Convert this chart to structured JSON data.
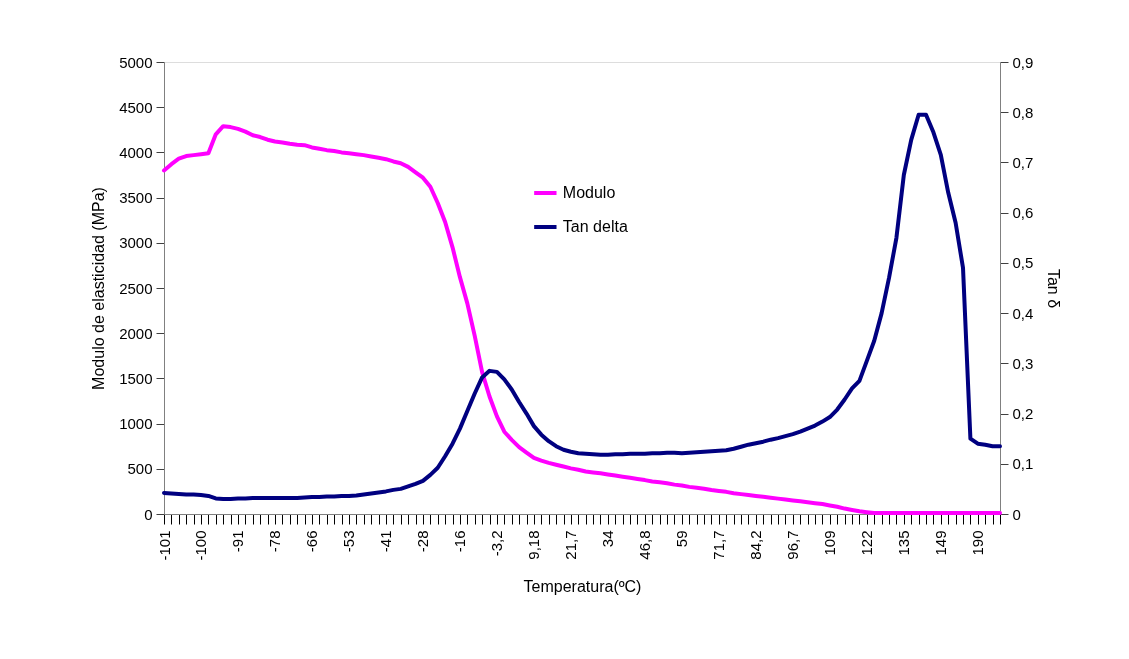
{
  "chart_data": {
    "type": "line",
    "xlabel": "Temperatura(ºC)",
    "ylabel": "Modulo de elasticidad (MPa)",
    "y2label": "Tan δ",
    "categories": [
      "-101",
      null,
      null,
      null,
      null,
      "-100",
      null,
      null,
      null,
      null,
      "-91",
      null,
      null,
      null,
      null,
      "-78",
      null,
      null,
      null,
      null,
      "-66",
      null,
      null,
      null,
      null,
      "-53",
      null,
      null,
      null,
      null,
      "-41",
      null,
      null,
      null,
      null,
      "-28",
      null,
      null,
      null,
      null,
      "-16",
      null,
      null,
      null,
      null,
      "-3,2",
      null,
      null,
      null,
      null,
      "9,18",
      null,
      null,
      null,
      null,
      "21,7",
      null,
      null,
      null,
      null,
      "34",
      null,
      null,
      null,
      null,
      "46,8",
      null,
      null,
      null,
      null,
      "59",
      null,
      null,
      null,
      null,
      "71,7",
      null,
      null,
      null,
      null,
      "84,2",
      null,
      null,
      null,
      null,
      "96,7",
      null,
      null,
      null,
      null,
      "109",
      null,
      null,
      null,
      null,
      "122",
      null,
      null,
      null,
      null,
      "135",
      null,
      null,
      null,
      null,
      "149",
      null,
      null,
      null,
      null,
      "190",
      null,
      null,
      null
    ],
    "series": [
      {
        "name": "Modulo",
        "color": "#ff00ff",
        "values": [
          3800,
          3870,
          3930,
          3960,
          3970,
          3980,
          3990,
          4200,
          4290,
          4280,
          4260,
          4230,
          4190,
          4170,
          4140,
          4120,
          4110,
          4095,
          4085,
          4080,
          4055,
          4040,
          4025,
          4015,
          4000,
          3990,
          3980,
          3970,
          3955,
          3940,
          3925,
          3900,
          3880,
          3840,
          3780,
          3720,
          3620,
          3440,
          3230,
          2950,
          2620,
          2330,
          1970,
          1570,
          1300,
          1080,
          910,
          820,
          740,
          680,
          620,
          590,
          565,
          545,
          525,
          505,
          490,
          470,
          460,
          450,
          438,
          425,
          413,
          400,
          388,
          375,
          360,
          350,
          340,
          325,
          315,
          300,
          290,
          280,
          265,
          255,
          245,
          230,
          220,
          210,
          200,
          190,
          180,
          170,
          160,
          150,
          140,
          130,
          120,
          110,
          95,
          80,
          60,
          45,
          30,
          20,
          10,
          10,
          10,
          10,
          10,
          10,
          10,
          10,
          10,
          10,
          10,
          10,
          10,
          10,
          10,
          10,
          10,
          10
        ]
      },
      {
        "name": "Tan delta",
        "color": "#000080",
        "axis": "y2",
        "values": [
          0.042,
          0.041,
          0.04,
          0.039,
          0.039,
          0.038,
          0.036,
          0.031,
          0.03,
          0.03,
          0.031,
          0.031,
          0.032,
          0.032,
          0.032,
          0.032,
          0.032,
          0.032,
          0.032,
          0.033,
          0.034,
          0.034,
          0.035,
          0.035,
          0.036,
          0.036,
          0.037,
          0.039,
          0.041,
          0.043,
          0.045,
          0.048,
          0.05,
          0.055,
          0.06,
          0.066,
          0.078,
          0.092,
          0.115,
          0.14,
          0.17,
          0.205,
          0.24,
          0.272,
          0.285,
          0.283,
          0.268,
          0.248,
          0.223,
          0.2,
          0.175,
          0.158,
          0.145,
          0.135,
          0.128,
          0.124,
          0.121,
          0.12,
          0.119,
          0.118,
          0.118,
          0.119,
          0.119,
          0.12,
          0.12,
          0.12,
          0.121,
          0.121,
          0.122,
          0.122,
          0.121,
          0.122,
          0.123,
          0.124,
          0.125,
          0.126,
          0.127,
          0.13,
          0.134,
          0.138,
          0.141,
          0.144,
          0.148,
          0.151,
          0.155,
          0.159,
          0.164,
          0.17,
          0.176,
          0.184,
          0.193,
          0.208,
          0.228,
          0.25,
          0.265,
          0.305,
          0.345,
          0.4,
          0.47,
          0.55,
          0.675,
          0.745,
          0.795,
          0.795,
          0.76,
          0.715,
          0.64,
          0.58,
          0.49,
          0.15,
          0.14,
          0.138,
          0.135,
          0.135
        ]
      }
    ],
    "ylim": [
      0,
      5000
    ],
    "yticks": [
      0,
      500,
      1000,
      1500,
      2000,
      2500,
      3000,
      3500,
      4000,
      4500,
      5000
    ],
    "y2lim": [
      0,
      0.9
    ],
    "y2ticks": [
      0,
      {
        "value": 0.1,
        "label": "0,1"
      },
      {
        "value": 0.2,
        "label": "0,2"
      },
      {
        "value": 0.3,
        "label": "0,3"
      },
      {
        "value": 0.4,
        "label": "0,4"
      },
      {
        "value": 0.5,
        "label": "0,5"
      },
      {
        "value": 0.6,
        "label": "0,6"
      },
      {
        "value": 0.7,
        "label": "0,7"
      },
      {
        "value": 0.8,
        "label": "0,8"
      },
      {
        "value": 0.9,
        "label": "0,9"
      }
    ],
    "grid": false,
    "legend": "top",
    "marker": "none",
    "line_style": "solid"
  }
}
